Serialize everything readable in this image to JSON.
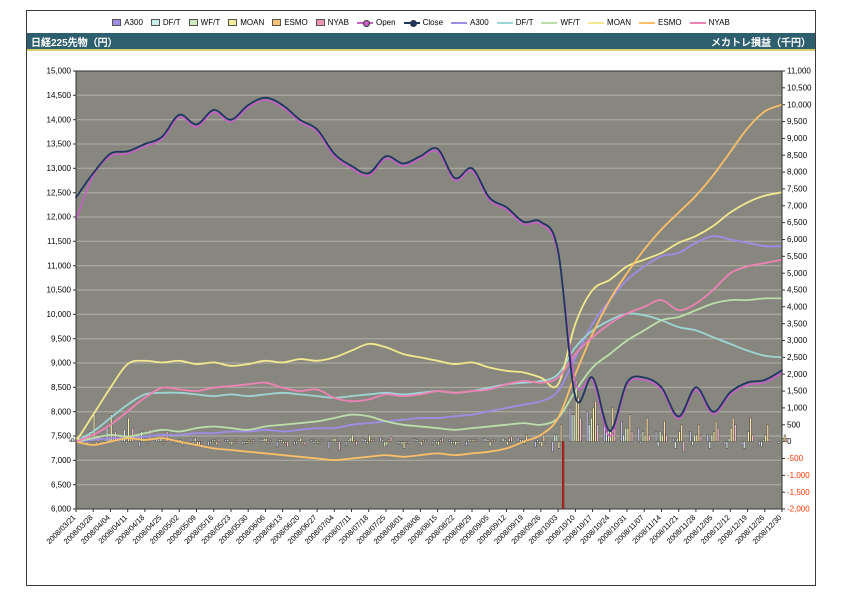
{
  "header": {
    "left_axis_title": "日経225先物（円）",
    "right_axis_title": "メカトレ損益（千円）"
  },
  "legend": {
    "items": [
      {
        "type": "bar",
        "label": "A300",
        "color": "#9E8CE6"
      },
      {
        "type": "bar",
        "label": "DF/T",
        "color": "#C9EDED"
      },
      {
        "type": "bar",
        "label": "WF/T",
        "color": "#CDE8BA"
      },
      {
        "type": "bar",
        "label": "MOAN",
        "color": "#F5EC9A"
      },
      {
        "type": "bar",
        "label": "ESMO",
        "color": "#F6C277"
      },
      {
        "type": "bar",
        "label": "NYAB",
        "color": "#F092B0"
      },
      {
        "type": "line",
        "label": "Open",
        "color": "#C95FC9",
        "marker": true
      },
      {
        "type": "line",
        "label": "Close",
        "color": "#1F3660",
        "marker": true
      },
      {
        "type": "line",
        "label": "A300",
        "color": "#9E8CE6",
        "marker": false
      },
      {
        "type": "line",
        "label": "DF/T",
        "color": "#9ED6D6",
        "marker": false
      },
      {
        "type": "line",
        "label": "WF/T",
        "color": "#BCDFAA",
        "marker": false
      },
      {
        "type": "line",
        "label": "MOAN",
        "color": "#F2E88E",
        "marker": false
      },
      {
        "type": "line",
        "label": "ESMO",
        "color": "#FBBF69",
        "marker": false
      },
      {
        "type": "line",
        "label": "NYAB",
        "color": "#EE82B4",
        "marker": false
      }
    ]
  },
  "chart_data": {
    "type": "combo: price lines (left axis) + equity lines and daily P&L bars (right axis)",
    "plot": {
      "background": "#87877F",
      "gridline_color": "#B2B2AA",
      "grid": "horizontal only",
      "border": "#333330"
    },
    "x_labels": [
      "2008/03/21",
      "2008/03/28",
      "2008/04/04",
      "2008/04/11",
      "2008/04/18",
      "2008/04/25",
      "2008/05/02",
      "2008/05/09",
      "2008/05/16",
      "2008/05/23",
      "2008/05/30",
      "2008/06/06",
      "2008/06/13",
      "2008/06/20",
      "2008/06/27",
      "2008/07/04",
      "2008/07/11",
      "2008/07/18",
      "2008/07/25",
      "2008/08/01",
      "2008/08/08",
      "2008/08/15",
      "2008/08/22",
      "2008/08/29",
      "2008/09/05",
      "2008/09/12",
      "2008/09/19",
      "2008/09/26",
      "2008/10/03",
      "2008/10/10",
      "2008/10/17",
      "2008/10/24",
      "2008/10/31",
      "2008/11/07",
      "2008/11/14",
      "2008/11/21",
      "2008/11/28",
      "2008/12/05",
      "2008/12/12",
      "2008/12/19",
      "2008/12/26",
      "2008/12/30"
    ],
    "left_axis": {
      "title": "日経225先物（円）",
      "min": 6000,
      "max": 15000,
      "step": 500,
      "unit": "円"
    },
    "right_axis": {
      "title": "メカトレ損益（千円）",
      "min": -2000,
      "max": 11000,
      "step": 500,
      "unit": "千円",
      "negative_label_color": "#FF3300"
    },
    "price_series": [
      {
        "name": "Open",
        "axis": "left",
        "color": "#C95FC9",
        "marker": true,
        "values": [
          11950,
          12850,
          13250,
          13300,
          13450,
          13600,
          14050,
          13850,
          14150,
          13950,
          14250,
          14400,
          14250,
          13950,
          13750,
          13250,
          13000,
          12850,
          13200,
          13050,
          13200,
          13350,
          12750,
          12950,
          12350,
          12150,
          11850,
          11850,
          11250,
          8600,
          8650,
          7500,
          8550,
          8650,
          8450,
          7850,
          8450,
          7950,
          8350,
          8550,
          8600,
          8800
        ]
      },
      {
        "name": "Close",
        "axis": "left",
        "color": "#1F3660",
        "marker": true,
        "values": [
          12400,
          12900,
          13300,
          13350,
          13500,
          13650,
          14100,
          13900,
          14200,
          14000,
          14300,
          14450,
          14300,
          14000,
          13800,
          13300,
          13050,
          12900,
          13250,
          13100,
          13250,
          13400,
          12800,
          13000,
          12400,
          12200,
          11900,
          11900,
          11300,
          8300,
          8700,
          7600,
          8600,
          8700,
          8500,
          7900,
          8500,
          8000,
          8400,
          8600,
          8650,
          8850
        ]
      }
    ],
    "equity_series": [
      {
        "name": "A300",
        "axis": "right",
        "color": "#9E8CE6",
        "values": [
          0,
          50,
          100,
          100,
          150,
          200,
          200,
          250,
          250,
          300,
          300,
          350,
          300,
          350,
          400,
          400,
          500,
          550,
          600,
          650,
          700,
          700,
          750,
          800,
          900,
          1000,
          1100,
          1200,
          1500,
          2500,
          3500,
          4200,
          4800,
          5200,
          5500,
          5600,
          5900,
          6100,
          6000,
          5900,
          5800,
          5800
        ]
      },
      {
        "name": "DF/T",
        "axis": "right",
        "color": "#9ED6D6",
        "values": [
          0,
          300,
          700,
          1100,
          1400,
          1450,
          1450,
          1400,
          1350,
          1400,
          1350,
          1400,
          1450,
          1400,
          1350,
          1300,
          1350,
          1400,
          1450,
          1400,
          1450,
          1500,
          1450,
          1500,
          1600,
          1700,
          1750,
          1800,
          2000,
          2800,
          3300,
          3600,
          3800,
          3750,
          3600,
          3400,
          3300,
          3100,
          2900,
          2700,
          2550,
          2500
        ]
      },
      {
        "name": "WF/T",
        "axis": "right",
        "color": "#BCDFAA",
        "values": [
          0,
          100,
          200,
          150,
          250,
          350,
          300,
          400,
          450,
          400,
          350,
          450,
          500,
          550,
          600,
          700,
          800,
          750,
          600,
          500,
          450,
          400,
          350,
          400,
          450,
          500,
          550,
          500,
          700,
          1500,
          2200,
          2600,
          3000,
          3300,
          3600,
          3700,
          3900,
          4100,
          4200,
          4200,
          4250,
          4250
        ]
      },
      {
        "name": "MOAN",
        "axis": "right",
        "color": "#F2E88E",
        "values": [
          0,
          800,
          1600,
          2300,
          2400,
          2350,
          2400,
          2300,
          2350,
          2250,
          2300,
          2400,
          2350,
          2450,
          2400,
          2500,
          2700,
          2900,
          2800,
          2600,
          2500,
          2400,
          2300,
          2350,
          2200,
          2100,
          2050,
          1900,
          1700,
          3500,
          4500,
          4800,
          5200,
          5400,
          5600,
          5900,
          6100,
          6400,
          6800,
          7100,
          7300,
          7400
        ]
      },
      {
        "name": "ESMO",
        "axis": "right",
        "color": "#FBBF69",
        "values": [
          0,
          -100,
          0,
          100,
          50,
          100,
          0,
          -100,
          -200,
          -250,
          -300,
          -350,
          -400,
          -450,
          -500,
          -550,
          -500,
          -450,
          -400,
          -450,
          -400,
          -350,
          -400,
          -350,
          -300,
          -200,
          0,
          200,
          700,
          2000,
          3200,
          4200,
          5000,
          5700,
          6300,
          6800,
          7300,
          7900,
          8600,
          9300,
          9800,
          10000
        ]
      },
      {
        "name": "NYAB",
        "axis": "right",
        "color": "#EE82B4",
        "values": [
          0,
          200,
          500,
          900,
          1300,
          1600,
          1550,
          1500,
          1600,
          1650,
          1700,
          1750,
          1600,
          1500,
          1550,
          1300,
          1200,
          1250,
          1400,
          1350,
          1400,
          1500,
          1450,
          1500,
          1550,
          1700,
          1800,
          1750,
          1900,
          2600,
          3100,
          3500,
          3800,
          4000,
          4200,
          3900,
          4100,
          4500,
          5000,
          5200,
          5300,
          5400
        ]
      }
    ],
    "pnl_bar_series": [
      {
        "name": "A300",
        "fill": "#CCC3F2",
        "values": [
          50,
          -80,
          120,
          60,
          -150,
          90,
          -60,
          110,
          -120,
          70,
          -90,
          80,
          -160,
          -90,
          60,
          -220,
          -110,
          90,
          130,
          -70,
          90,
          -80,
          70,
          -110,
          90,
          -70,
          130,
          -160,
          -300,
          1000,
          900,
          700,
          600,
          400,
          300,
          100,
          300,
          200,
          -100,
          -100,
          -100,
          0
        ]
      },
      {
        "name": "DF/T",
        "fill": "#DCF2F2",
        "values": [
          100,
          300,
          400,
          350,
          300,
          50,
          0,
          -50,
          -60,
          50,
          -50,
          60,
          50,
          -60,
          -50,
          -60,
          50,
          60,
          50,
          -50,
          60,
          50,
          -60,
          50,
          100,
          100,
          60,
          50,
          200,
          800,
          500,
          300,
          200,
          -60,
          -150,
          -200,
          -100,
          -200,
          -200,
          -200,
          -150,
          -50
        ]
      },
      {
        "name": "WF/T",
        "fill": "#DFF0CE",
        "values": [
          50,
          100,
          110,
          -60,
          100,
          100,
          -50,
          110,
          50,
          -60,
          -50,
          100,
          60,
          50,
          50,
          100,
          110,
          -60,
          -150,
          -100,
          -50,
          -60,
          -50,
          50,
          60,
          50,
          50,
          -60,
          200,
          800,
          700,
          400,
          400,
          300,
          300,
          100,
          200,
          200,
          100,
          0,
          50,
          0
        ]
      },
      {
        "name": "MOAN",
        "fill": "#F8F1B4",
        "values": [
          200,
          800,
          800,
          700,
          100,
          -50,
          60,
          -100,
          50,
          -100,
          50,
          100,
          -60,
          100,
          -50,
          100,
          200,
          200,
          -100,
          -200,
          -100,
          -100,
          -100,
          50,
          -150,
          -100,
          -50,
          -150,
          -200,
          1800,
          1000,
          300,
          400,
          200,
          200,
          300,
          200,
          300,
          400,
          300,
          200,
          100
        ]
      },
      {
        "name": "ESMO",
        "fill": "#FAD9A8",
        "values": [
          0,
          -100,
          100,
          100,
          -50,
          50,
          -100,
          -100,
          -100,
          -50,
          -60,
          -50,
          -50,
          -60,
          -50,
          -50,
          50,
          50,
          60,
          -50,
          50,
          50,
          -60,
          50,
          50,
          100,
          200,
          200,
          500,
          1300,
          1200,
          1000,
          800,
          700,
          600,
          500,
          500,
          600,
          700,
          700,
          500,
          200
        ]
      },
      {
        "name": "NYAB",
        "fill": "#F8C2D6",
        "values": [
          100,
          200,
          300,
          400,
          400,
          300,
          -50,
          -60,
          100,
          50,
          60,
          50,
          -150,
          -100,
          50,
          -250,
          -100,
          50,
          150,
          -50,
          50,
          100,
          -60,
          50,
          50,
          150,
          100,
          -50,
          -2000,
          700,
          500,
          400,
          300,
          200,
          200,
          -300,
          200,
          400,
          500,
          200,
          100,
          100
        ]
      }
    ]
  }
}
